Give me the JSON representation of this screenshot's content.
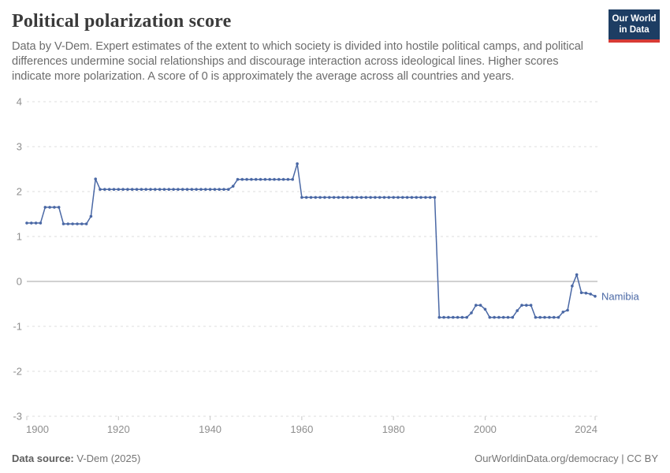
{
  "header": {
    "title": "Political polarization score",
    "subtitle": "Data by V-Dem. Expert estimates of the extent to which society is divided into hostile political camps, and political differences undermine social relationships and discourage interaction across ideological lines. Higher scores indicate more polarization. A score of 0 is approximately the average across all countries and years."
  },
  "logo": {
    "line1": "Our World",
    "line2": "in Data",
    "bg_color": "#1d3d63",
    "bar_color": "#d73a35"
  },
  "chart_data": {
    "type": "line",
    "title": "Political polarization score",
    "entity_label": "Namibia",
    "xlabel": "",
    "ylabel": "",
    "xlim": [
      1900,
      2024
    ],
    "ylim": [
      -3,
      4
    ],
    "x_ticks": [
      1900,
      1920,
      1940,
      1960,
      1980,
      2000,
      2024
    ],
    "y_ticks": [
      4,
      3,
      2,
      1,
      0,
      -1,
      -2,
      -3
    ],
    "grid": "horizontal dashed gridlines, solid line at zero",
    "legend_position": "label at end of line",
    "line_color": "#4a68a5",
    "grid_color": "#dcdcdc",
    "zero_line_color": "#a3a3a3",
    "tick_color": "#c8c8c8",
    "x": [
      1900,
      1901,
      1902,
      1903,
      1904,
      1905,
      1906,
      1907,
      1908,
      1909,
      1910,
      1911,
      1912,
      1913,
      1914,
      1915,
      1916,
      1917,
      1918,
      1919,
      1920,
      1921,
      1922,
      1923,
      1924,
      1925,
      1926,
      1927,
      1928,
      1929,
      1930,
      1931,
      1932,
      1933,
      1934,
      1935,
      1936,
      1937,
      1938,
      1939,
      1940,
      1941,
      1942,
      1943,
      1944,
      1945,
      1946,
      1947,
      1948,
      1949,
      1950,
      1951,
      1952,
      1953,
      1954,
      1955,
      1956,
      1957,
      1958,
      1959,
      1960,
      1961,
      1962,
      1963,
      1964,
      1965,
      1966,
      1967,
      1968,
      1969,
      1970,
      1971,
      1972,
      1973,
      1974,
      1975,
      1976,
      1977,
      1978,
      1979,
      1980,
      1981,
      1982,
      1983,
      1984,
      1985,
      1986,
      1987,
      1988,
      1989,
      1990,
      1991,
      1992,
      1993,
      1994,
      1995,
      1996,
      1997,
      1998,
      1999,
      2000,
      2001,
      2002,
      2003,
      2004,
      2005,
      2006,
      2007,
      2008,
      2009,
      2010,
      2011,
      2012,
      2013,
      2014,
      2015,
      2016,
      2017,
      2018,
      2019,
      2020,
      2021,
      2022,
      2023,
      2024
    ],
    "series": [
      {
        "name": "Namibia",
        "values": [
          1.3,
          1.3,
          1.3,
          1.3,
          1.65,
          1.65,
          1.65,
          1.65,
          1.28,
          1.28,
          1.28,
          1.28,
          1.28,
          1.28,
          1.45,
          2.28,
          2.05,
          2.05,
          2.05,
          2.05,
          2.05,
          2.05,
          2.05,
          2.05,
          2.05,
          2.05,
          2.05,
          2.05,
          2.05,
          2.05,
          2.05,
          2.05,
          2.05,
          2.05,
          2.05,
          2.05,
          2.05,
          2.05,
          2.05,
          2.05,
          2.05,
          2.05,
          2.05,
          2.05,
          2.05,
          2.12,
          2.27,
          2.27,
          2.27,
          2.27,
          2.27,
          2.27,
          2.27,
          2.27,
          2.27,
          2.27,
          2.27,
          2.27,
          2.27,
          2.62,
          1.87,
          1.87,
          1.87,
          1.87,
          1.87,
          1.87,
          1.87,
          1.87,
          1.87,
          1.87,
          1.87,
          1.87,
          1.87,
          1.87,
          1.87,
          1.87,
          1.87,
          1.87,
          1.87,
          1.87,
          1.87,
          1.87,
          1.87,
          1.87,
          1.87,
          1.87,
          1.87,
          1.87,
          1.87,
          1.87,
          -0.8,
          -0.8,
          -0.8,
          -0.8,
          -0.8,
          -0.8,
          -0.8,
          -0.7,
          -0.53,
          -0.53,
          -0.62,
          -0.8,
          -0.8,
          -0.8,
          -0.8,
          -0.8,
          -0.8,
          -0.65,
          -0.53,
          -0.53,
          -0.53,
          -0.8,
          -0.8,
          -0.8,
          -0.8,
          -0.8,
          -0.8,
          -0.68,
          -0.64,
          -0.1,
          0.15,
          -0.25,
          -0.26,
          -0.28,
          -0.33
        ]
      }
    ]
  },
  "footer": {
    "source_label": "Data source:",
    "source_value": "V-Dem (2025)",
    "url": "OurWorldinData.org/democracy",
    "divider": " | ",
    "license": "CC BY"
  }
}
